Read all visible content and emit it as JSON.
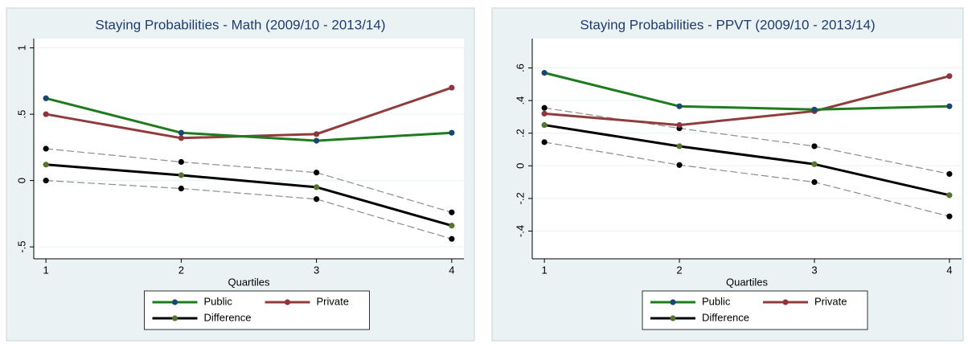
{
  "chart_data": [
    {
      "type": "line",
      "title": "Staying Probabilities - Math (2009/10 - 2013/14)",
      "x_label": "Quartiles",
      "x": [
        1,
        2,
        3,
        4
      ],
      "xlim": [
        0.91,
        4.09
      ],
      "xticks": [
        1,
        2,
        3,
        4
      ],
      "ylim": [
        -0.59,
        1.07
      ],
      "yticks": [
        {
          "value": -0.5,
          "label": "-.5"
        },
        0,
        {
          "value": 0.5,
          "label": ".5"
        },
        1
      ],
      "grid": true,
      "series": [
        {
          "name": "Public",
          "color": "#1e7b1e",
          "marker_color": "#1a476f",
          "values": [
            0.62,
            0.36,
            0.3,
            0.36
          ]
        },
        {
          "name": "Private",
          "color": "#903c3c",
          "marker_color": "#90353b",
          "values": [
            0.5,
            0.32,
            0.35,
            0.7
          ]
        },
        {
          "name": "Difference",
          "color": "#000000",
          "marker_color": "#55752f",
          "values": [
            0.12,
            0.04,
            -0.05,
            -0.34
          ]
        },
        {
          "color": "#8c8c8c",
          "marker_color": "#000000",
          "dashed": true,
          "values": [
            0.24,
            0.14,
            0.06,
            -0.24
          ]
        },
        {
          "color": "#8c8c8c",
          "marker_color": "#000000",
          "dashed": true,
          "values": [
            0.0,
            -0.06,
            -0.14,
            -0.44
          ]
        }
      ]
    },
    {
      "type": "line",
      "title": "Staying Probabilities - PPVT (2009/10 - 2013/14)",
      "x_label": "Quartiles",
      "x": [
        1,
        2,
        3,
        4
      ],
      "xlim": [
        0.91,
        4.09
      ],
      "xticks": [
        1,
        2,
        3,
        4
      ],
      "ylim": [
        -0.57,
        0.78
      ],
      "yticks": [
        {
          "value": -0.4,
          "label": "-.4"
        },
        {
          "value": -0.2,
          "label": "-.2"
        },
        0,
        {
          "value": 0.2,
          "label": ".2"
        },
        {
          "value": 0.4,
          "label": ".4"
        },
        {
          "value": 0.6,
          "label": ".6"
        }
      ],
      "grid": true,
      "series": [
        {
          "name": "Public",
          "color": "#1e7b1e",
          "marker_color": "#1a476f",
          "values": [
            0.57,
            0.365,
            0.345,
            0.365
          ]
        },
        {
          "name": "Private",
          "color": "#903c3c",
          "marker_color": "#90353b",
          "values": [
            0.32,
            0.25,
            0.335,
            0.55
          ]
        },
        {
          "name": "Difference",
          "color": "#000000",
          "marker_color": "#55752f",
          "values": [
            0.25,
            0.12,
            0.01,
            -0.18
          ]
        },
        {
          "color": "#8c8c8c",
          "marker_color": "#000000",
          "dashed": true,
          "values": [
            0.355,
            0.23,
            0.12,
            -0.05
          ]
        },
        {
          "color": "#8c8c8c",
          "marker_color": "#000000",
          "dashed": true,
          "values": [
            0.145,
            0.005,
            -0.1,
            -0.31
          ]
        }
      ]
    }
  ]
}
